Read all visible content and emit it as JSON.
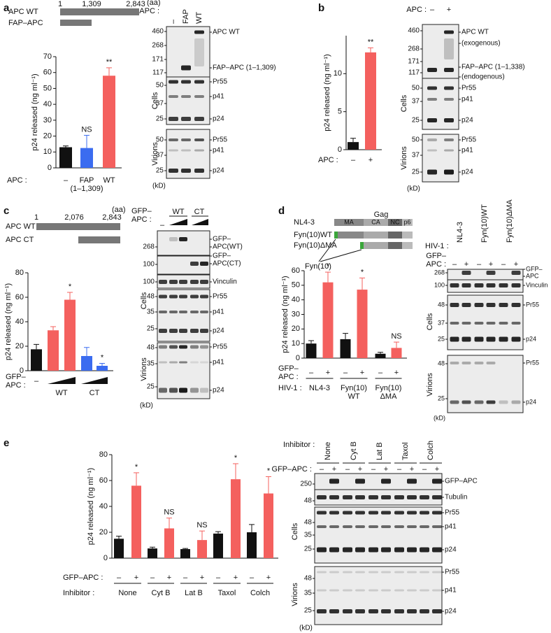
{
  "chart_data": [
    {
      "type": "bar",
      "y_label": "p24 released (ng ml⁻¹)",
      "row_label": "APC :",
      "categories": [
        "–",
        "FAP\n(1–1,309)",
        "WT"
      ],
      "values": [
        13,
        12.5,
        58
      ],
      "errors": [
        0.8,
        8,
        5
      ],
      "colors": [
        "#111111",
        "#3b6cf0",
        "#f4605e"
      ],
      "annotations": [
        null,
        "NS",
        "**"
      ],
      "ylim": [
        0,
        70
      ],
      "yticks": [
        0,
        10,
        20,
        30,
        40,
        50,
        60,
        70
      ]
    },
    {
      "type": "bar",
      "y_label": "p24 released (ng ml⁻¹)",
      "row_label": "APC :",
      "categories": [
        "–",
        "+"
      ],
      "values": [
        1,
        12.8
      ],
      "errors": [
        0.5,
        0.6
      ],
      "colors": [
        "#111111",
        "#f4605e"
      ],
      "annotations": [
        null,
        "**"
      ],
      "ylim": [
        0,
        15
      ],
      "yticks": [
        0,
        5,
        10
      ]
    },
    {
      "type": "bar",
      "y_label": "p24 released (ng ml⁻¹)",
      "row_label": "GFP–\nAPC :",
      "categories": [
        "–",
        null,
        null,
        null,
        null
      ],
      "groups": [
        "WT",
        "CT"
      ],
      "values": [
        17.5,
        33,
        58,
        12,
        4
      ],
      "errors": [
        4,
        3,
        6,
        7,
        2
      ],
      "colors": [
        "#111111",
        "#f4605e",
        "#f4605e",
        "#3b6cf0",
        "#3b6cf0"
      ],
      "annotations": [
        null,
        null,
        "*",
        null,
        "*"
      ],
      "ylim": [
        0,
        80
      ],
      "yticks": [
        0,
        20,
        40,
        60,
        80
      ]
    },
    {
      "type": "bar",
      "y_label": "p24 released (ng ml⁻¹)",
      "row_label": "GFP–\nAPC :",
      "group_label": "HIV-1 :",
      "categories": [
        "–",
        "+",
        "–",
        "+",
        "–",
        "+"
      ],
      "groups": [
        "NL4-3",
        "Fyn(10)\nWT",
        "Fyn(10)\nΔMA"
      ],
      "values": [
        10,
        52,
        13,
        47,
        3,
        7
      ],
      "errors": [
        2,
        7,
        4,
        8,
        1,
        4
      ],
      "colors": [
        "#111111",
        "#f4605e",
        "#111111",
        "#f4605e",
        "#111111",
        "#f4605e"
      ],
      "annotations": [
        null,
        "*",
        null,
        "*",
        null,
        "NS"
      ],
      "ylim": [
        0,
        60
      ],
      "yticks": [
        0,
        10,
        20,
        30,
        40,
        50,
        60
      ]
    },
    {
      "type": "bar",
      "y_label": "p24 released (ng ml⁻¹)",
      "row_label": "GFP–APC :",
      "group_label": "Inhibitor :",
      "categories": [
        "–",
        "+",
        "–",
        "+",
        "–",
        "+",
        "–",
        "+",
        "–",
        "+"
      ],
      "groups": [
        "None",
        "Cyt B",
        "Lat B",
        "Taxol",
        "Colch"
      ],
      "values": [
        15,
        56,
        7.5,
        23,
        7,
        14,
        19,
        61,
        20,
        50
      ],
      "errors": [
        2,
        10,
        1,
        8,
        0.5,
        7,
        1.5,
        12,
        6,
        13
      ],
      "colors": [
        "#111111",
        "#f4605e",
        "#111111",
        "#f4605e",
        "#111111",
        "#f4605e",
        "#111111",
        "#f4605e",
        "#111111",
        "#f4605e"
      ],
      "annotations": [
        null,
        "*",
        null,
        "NS",
        null,
        "NS",
        null,
        "*",
        null,
        "*"
      ],
      "ylim": [
        0,
        80
      ],
      "yticks": [
        0,
        20,
        40,
        60,
        80
      ]
    }
  ],
  "panels": {
    "a": {
      "letter": "a",
      "schematic": {
        "unit": "(aa)",
        "positions": [
          "1",
          "1,309",
          "2,843"
        ],
        "constructs": [
          "APC WT",
          "FAP–APC"
        ]
      },
      "blot": {
        "row_label": "APC :",
        "lanes": [
          "–",
          "FAP",
          "WT"
        ],
        "fractions": [
          "Cells",
          "Virions"
        ],
        "unit": "(kD)",
        "markers": [
          "460",
          "268",
          "171",
          "117",
          "50",
          "37",
          "25",
          "50",
          "37",
          "25"
        ],
        "bands": [
          "APC WT",
          "FAP–APC (1–1,309)",
          "Pr55",
          "p41",
          "p24",
          "Pr55",
          "p41",
          "p24"
        ]
      }
    },
    "b": {
      "letter": "b",
      "blot": {
        "row_label": "APC :",
        "lanes": [
          "–",
          "+"
        ],
        "fractions": [
          "Cells",
          "Virions"
        ],
        "unit": "(kD)",
        "markers": [
          "460",
          "268",
          "171",
          "117",
          "50",
          "37",
          "25",
          "50",
          "37",
          "25"
        ],
        "bands": [
          "APC WT",
          "(exogenous)",
          "FAP–APC (1–1,338)",
          "(endogenous)",
          "Pr55",
          "p41",
          "p24",
          "Pr55",
          "p41",
          "p24"
        ]
      }
    },
    "c": {
      "letter": "c",
      "schematic": {
        "unit": "(aa)",
        "positions": [
          "1",
          "2,076",
          "2,843"
        ],
        "constructs": [
          "APC WT",
          "APC CT"
        ]
      },
      "blot": {
        "row_label": [
          "GFP–",
          "APC :"
        ],
        "lanes": [
          "–",
          "WT",
          "CT"
        ],
        "fractions": [
          "Cells",
          "Virions"
        ],
        "unit": "(kD)",
        "markers": [
          "268",
          "100",
          "100",
          "48",
          "35",
          "25",
          "48",
          "35",
          "25"
        ],
        "bands": [
          "GFP–",
          "APC(WT)",
          "GFP–",
          "APC(CT)",
          "Vinculin",
          "Pr55",
          "p41",
          "p24",
          "Pr55",
          "p41",
          "p24"
        ]
      }
    },
    "d": {
      "letter": "d",
      "schematic": {
        "title": "Gag",
        "constructs": [
          "NL4-3",
          "Fyn(10)WT",
          "Fyn(10)ΔMA"
        ],
        "domains": [
          "MA",
          "CA",
          "NC",
          "p6"
        ],
        "tag": "Fyn(10)"
      },
      "blot": {
        "strain_label": "HIV-1 :",
        "lanes": [
          "NL4-3",
          "Fyn(10)WT",
          "Fyn(10)ΔMA"
        ],
        "row_label": [
          "GFP–",
          "APC :"
        ],
        "treatment": [
          "–",
          "+",
          "–",
          "+",
          "–",
          "+"
        ],
        "fractions": [
          "Cells",
          "Virions"
        ],
        "unit": "(kD)",
        "markers": [
          "268",
          "100",
          "48",
          "37",
          "25",
          "48",
          "25"
        ],
        "bands": [
          "GFP–",
          "APC",
          "Vinculin",
          "Pr55",
          "p24",
          "Pr55",
          "p24"
        ]
      }
    },
    "e": {
      "letter": "e",
      "blot": {
        "group_label": "Inhibitor :",
        "lanes": [
          "None",
          "Cyt B",
          "Lat B",
          "Taxol",
          "Colch"
        ],
        "row_label": "GFP–APC :",
        "treatment": [
          "–",
          "+",
          "–",
          "+",
          "–",
          "+",
          "–",
          "+",
          "–",
          "+"
        ],
        "fractions": [
          "Cells",
          "Virions"
        ],
        "unit": "(kD)",
        "markers": [
          "250",
          "48",
          "48",
          "35",
          "25",
          "48",
          "35",
          "25"
        ],
        "bands": [
          "GFP–APC",
          "Tubulin",
          "Pr55",
          "p41",
          "p24",
          "Pr55",
          "p41",
          "p24"
        ]
      }
    }
  }
}
